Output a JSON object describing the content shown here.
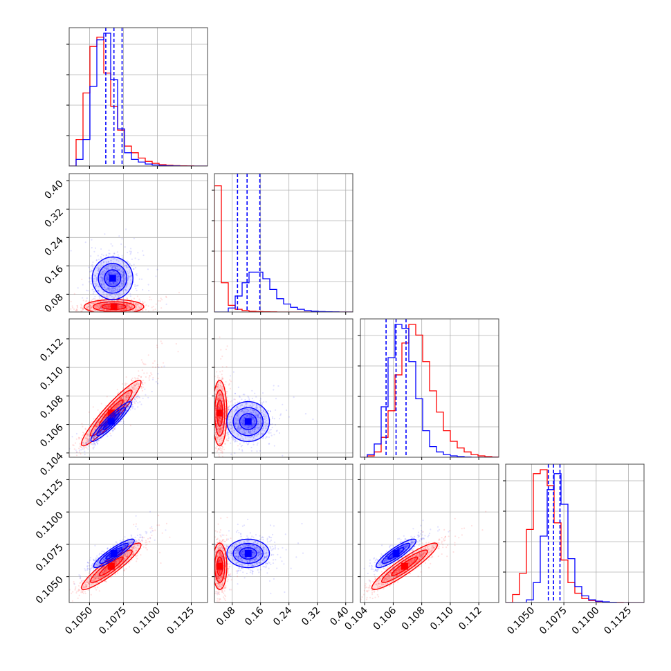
{
  "chart_data": {
    "type": "corner",
    "colors": {
      "blue": "#0000ff",
      "red": "#ff0000",
      "frame": "#444444",
      "grid": "#b0b0b0"
    },
    "params": [
      {
        "range": [
          0.1035,
          0.1137
        ],
        "ticks": [
          "0.1050",
          "0.1075",
          "0.1100",
          "0.1125"
        ]
      },
      {
        "range": [
          0.03,
          0.42
        ],
        "ticks": [
          "0.08",
          "0.16",
          "0.24",
          "0.32",
          "0.40"
        ]
      },
      {
        "range": [
          0.1037,
          0.1134
        ],
        "ticks": [
          "0.104",
          "0.106",
          "0.108",
          "0.110",
          "0.112"
        ]
      },
      {
        "range": [
          0.103,
          0.1137
        ],
        "ticks": [
          "0.1050",
          "0.1075",
          "0.1100",
          "0.1125"
        ]
      }
    ],
    "hist": [
      {
        "blue": [
          0.0,
          0.05,
          0.2,
          0.6,
          0.95,
          1.0,
          0.65,
          0.28,
          0.1,
          0.05,
          0.03,
          0.015,
          0.008,
          0.004,
          0.002,
          0.001,
          0,
          0,
          0,
          0
        ],
        "red": [
          0.0,
          0.2,
          0.55,
          0.9,
          0.97,
          0.7,
          0.45,
          0.27,
          0.15,
          0.1,
          0.06,
          0.035,
          0.02,
          0.01,
          0.006,
          0.003,
          0.002,
          0.001,
          0,
          0
        ],
        "quantiles_blue": [
          0.1062,
          0.1068,
          0.1074
        ]
      },
      {
        "blue": [
          0.0,
          0.0,
          0.03,
          0.12,
          0.22,
          0.3,
          0.3,
          0.25,
          0.17,
          0.1,
          0.06,
          0.035,
          0.02,
          0.01,
          0.006,
          0.003,
          0.002,
          0.001,
          0,
          0
        ],
        "red": [
          0.95,
          0.22,
          0.05,
          0.02,
          0.01,
          0.005,
          0.003,
          0.002,
          0.001,
          0,
          0,
          0,
          0,
          0,
          0,
          0,
          0,
          0,
          0,
          0
        ],
        "quantiles_blue": [
          0.095,
          0.122,
          0.158
        ]
      },
      {
        "blue": [
          0.0,
          0.02,
          0.1,
          0.38,
          0.75,
          1.0,
          0.97,
          0.72,
          0.44,
          0.2,
          0.08,
          0.04,
          0.02,
          0.01,
          0.005,
          0.002,
          0,
          0,
          0,
          0
        ],
        "red": [
          0.0,
          0.01,
          0.04,
          0.15,
          0.35,
          0.62,
          0.86,
          1.0,
          0.92,
          0.72,
          0.5,
          0.34,
          0.2,
          0.12,
          0.07,
          0.04,
          0.02,
          0.01,
          0.005,
          0.002
        ],
        "quantiles_blue": [
          0.1055,
          0.1062,
          0.1069
        ]
      },
      {
        "blue": [
          0.0,
          0.0,
          0.0,
          0.02,
          0.15,
          0.5,
          0.85,
          0.97,
          0.74,
          0.33,
          0.12,
          0.05,
          0.02,
          0.01,
          0.005,
          0.002,
          0,
          0,
          0,
          0
        ],
        "red": [
          0.0,
          0.06,
          0.22,
          0.55,
          0.97,
          1.0,
          0.88,
          0.6,
          0.32,
          0.15,
          0.07,
          0.03,
          0.015,
          0.008,
          0.004,
          0.002,
          0.001,
          0,
          0,
          0
        ],
        "quantiles_blue": [
          0.1063,
          0.1067,
          0.1072
        ]
      }
    ],
    "pairs": [
      {
        "row": 1,
        "col": 0,
        "blue": {
          "mx": 0.1067,
          "my": 0.125,
          "sx": 0.00075,
          "sy": 0.03,
          "rho": 0.0
        },
        "red": {
          "mx": 0.1068,
          "my": 0.045,
          "sx": 0.0011,
          "sy": 0.01,
          "rho": 0.0
        }
      },
      {
        "row": 2,
        "col": 0,
        "blue": {
          "mx": 0.1066,
          "my": 0.1062,
          "sx": 0.00075,
          "sy": 0.0007,
          "rho": 0.93
        },
        "red": {
          "mx": 0.1066,
          "my": 0.1068,
          "sx": 0.0011,
          "sy": 0.00115,
          "rho": 0.94
        }
      },
      {
        "row": 3,
        "col": 0,
        "blue": {
          "mx": 0.1068,
          "my": 0.1068,
          "sx": 0.00075,
          "sy": 0.00055,
          "rho": 0.9
        },
        "red": {
          "mx": 0.1066,
          "my": 0.1058,
          "sx": 0.0011,
          "sy": 0.0009,
          "rho": 0.92
        }
      },
      {
        "row": 2,
        "col": 1,
        "blue": {
          "mx": 0.125,
          "my": 0.1062,
          "sx": 0.03,
          "sy": 0.0007,
          "rho": 0.0
        },
        "red": {
          "mx": 0.045,
          "my": 0.1068,
          "sx": 0.01,
          "sy": 0.00115,
          "rho": 0.0
        }
      },
      {
        "row": 3,
        "col": 1,
        "blue": {
          "mx": 0.125,
          "my": 0.1068,
          "sx": 0.03,
          "sy": 0.00055,
          "rho": 0.0
        },
        "red": {
          "mx": 0.045,
          "my": 0.1058,
          "sx": 0.01,
          "sy": 0.0009,
          "rho": 0.0
        }
      },
      {
        "row": 3,
        "col": 2,
        "blue": {
          "mx": 0.1062,
          "my": 0.1068,
          "sx": 0.0007,
          "sy": 0.00055,
          "rho": 0.88
        },
        "red": {
          "mx": 0.1068,
          "my": 0.1058,
          "sx": 0.00115,
          "sy": 0.0009,
          "rho": 0.92
        }
      }
    ]
  }
}
